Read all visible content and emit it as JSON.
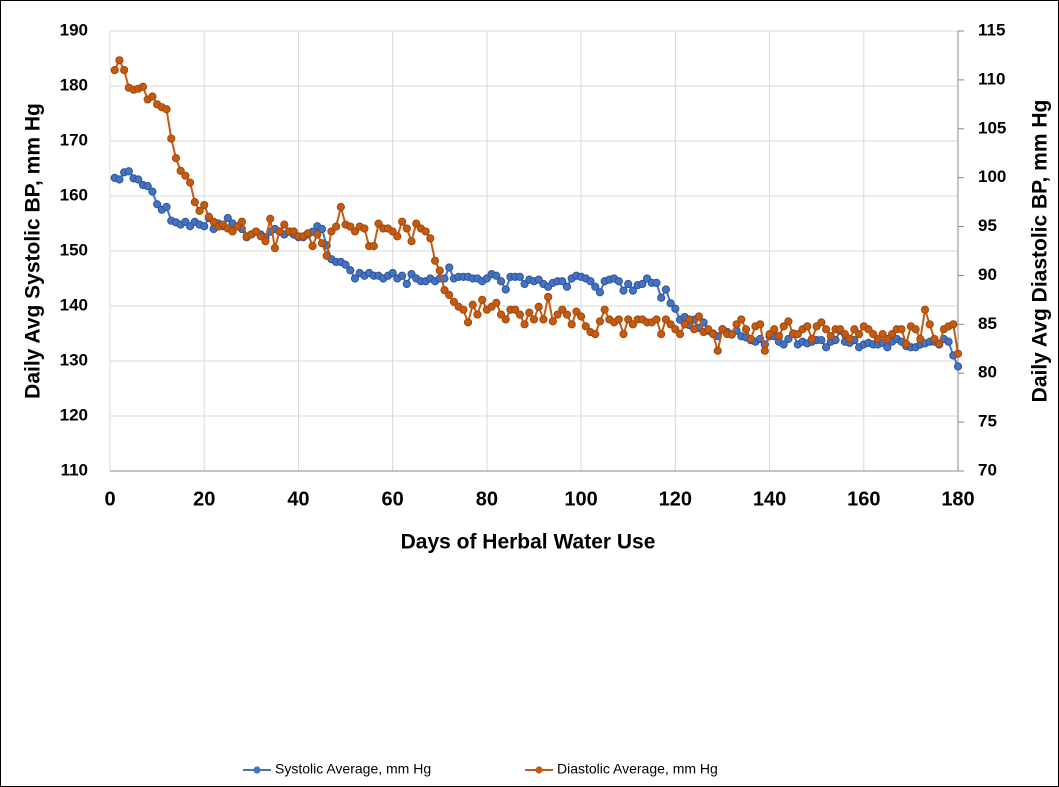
{
  "chart_data": {
    "type": "line",
    "xlabel": "Days of Herbal Water Use",
    "ylabel": "Daily Avg Systolic BP, mm Hg",
    "y2label": "Daily Avg Diastolic BP, mm Hg",
    "xlim": [
      0,
      180
    ],
    "xticks": [
      0,
      20,
      40,
      60,
      80,
      100,
      120,
      140,
      160,
      180
    ],
    "ylim": [
      110,
      190
    ],
    "yticks": [
      110,
      120,
      130,
      140,
      150,
      160,
      170,
      180,
      190
    ],
    "y2lim": [
      70,
      115
    ],
    "y2ticks": [
      70,
      75,
      80,
      85,
      90,
      95,
      100,
      105,
      110,
      115
    ],
    "grid": true,
    "legend": "bottom",
    "x": [
      1,
      2,
      3,
      4,
      5,
      6,
      7,
      8,
      9,
      10,
      11,
      12,
      13,
      14,
      15,
      16,
      17,
      18,
      19,
      20,
      21,
      22,
      23,
      24,
      25,
      26,
      27,
      28,
      29,
      30,
      31,
      32,
      33,
      34,
      35,
      36,
      37,
      38,
      39,
      40,
      41,
      42,
      43,
      44,
      45,
      46,
      47,
      48,
      49,
      50,
      51,
      52,
      53,
      54,
      55,
      56,
      57,
      58,
      59,
      60,
      61,
      62,
      63,
      64,
      65,
      66,
      67,
      68,
      69,
      70,
      71,
      72,
      73,
      74,
      75,
      76,
      77,
      78,
      79,
      80,
      81,
      82,
      83,
      84,
      85,
      86,
      87,
      88,
      89,
      90,
      91,
      92,
      93,
      94,
      95,
      96,
      97,
      98,
      99,
      100,
      101,
      102,
      103,
      104,
      105,
      106,
      107,
      108,
      109,
      110,
      111,
      112,
      113,
      114,
      115,
      116,
      117,
      118,
      119,
      120,
      121,
      122,
      123,
      124,
      125,
      126,
      127,
      128,
      129,
      130,
      131,
      132,
      133,
      134,
      135,
      136,
      137,
      138,
      139,
      140,
      141,
      142,
      143,
      144,
      145,
      146,
      147,
      148,
      149,
      150,
      151,
      152,
      153,
      154,
      155,
      156,
      157,
      158,
      159,
      160,
      161,
      162,
      163,
      164,
      165,
      166,
      167,
      168,
      169,
      170,
      171,
      172,
      173,
      174,
      175,
      176,
      177,
      178,
      179,
      180
    ],
    "series": [
      {
        "name": "Systolic Average, mm Hg",
        "color": "#4472c4",
        "axis": "y",
        "values": [
          163.3,
          163,
          164.3,
          164.5,
          163.2,
          163,
          162,
          161.8,
          160.8,
          158.5,
          157.5,
          158,
          155.5,
          155.2,
          154.8,
          155.3,
          154.5,
          155.3,
          154.8,
          154.5,
          156,
          154,
          155,
          154.5,
          156,
          155,
          154.5,
          154,
          152.5,
          153,
          153.5,
          153,
          152.5,
          153.5,
          154,
          153.5,
          153,
          153.5,
          153,
          152.5,
          152.5,
          153,
          153.5,
          154.5,
          154,
          151,
          148.5,
          148,
          148,
          147.5,
          146.5,
          145,
          146,
          145.5,
          146,
          145.5,
          145.5,
          145,
          145.5,
          146,
          145,
          145.5,
          144,
          145.8,
          145,
          144.5,
          144.5,
          145,
          144.5,
          145,
          145,
          147,
          145,
          145.3,
          145.3,
          145.3,
          145,
          145,
          144.5,
          145,
          145.8,
          145.5,
          144.5,
          143,
          145.3,
          145.3,
          145.3,
          144,
          144.8,
          144.5,
          144.8,
          144,
          143.5,
          144.2,
          144.5,
          144.5,
          143.5,
          145,
          145.5,
          145.3,
          145,
          144.5,
          143.5,
          142.5,
          144.5,
          144.8,
          145,
          144.5,
          142.8,
          144,
          142.8,
          143.8,
          144,
          145,
          144.2,
          144.2,
          141.5,
          143,
          140.5,
          139.5,
          137.5,
          138,
          136.5,
          137.5,
          136,
          137,
          135.5,
          135,
          134.5,
          135.8,
          135.3,
          134.8,
          135.5,
          134.5,
          134.3,
          133.8,
          133.5,
          134,
          133,
          134.5,
          134.5,
          133.5,
          133,
          134,
          135,
          133,
          133.5,
          133.2,
          133.5,
          133.8,
          133.8,
          132.5,
          133.5,
          133.8,
          135.5,
          133.5,
          133.3,
          133.8,
          132.5,
          133,
          133.3,
          133,
          133,
          133.3,
          132.5,
          133.5,
          134,
          133.5,
          132.7,
          132.5,
          132.5,
          133,
          133.2,
          133.5,
          133.5,
          133,
          134,
          133.5,
          131,
          129
        ]
      },
      {
        "name": "Diastolic Average, mm Hg",
        "color": "#c55a11",
        "axis": "y2",
        "values": [
          111,
          112,
          111,
          109.2,
          109,
          109.1,
          109.3,
          108,
          108.3,
          107.5,
          107.2,
          107,
          104,
          102,
          100.7,
          100.2,
          99.5,
          97.5,
          96.6,
          97.2,
          96,
          95.5,
          95,
          95.2,
          94.8,
          94.5,
          95,
          95.5,
          94,
          94.2,
          94.5,
          94,
          93.5,
          95.8,
          92.8,
          94.5,
          95.2,
          94.5,
          94.5,
          94,
          94,
          94.3,
          93,
          94.2,
          93.3,
          92,
          94.5,
          95,
          97,
          95.2,
          95,
          94.5,
          95,
          94.8,
          93,
          93,
          95.3,
          94.8,
          94.8,
          94.5,
          94,
          95.5,
          94.8,
          93.5,
          95.3,
          94.8,
          94.5,
          93.8,
          91.5,
          90.5,
          88.5,
          88,
          87.3,
          86.8,
          86.5,
          85.2,
          87,
          86,
          87.5,
          86.5,
          86.8,
          87.2,
          86,
          85.5,
          86.5,
          86.5,
          86,
          85,
          86.2,
          85.5,
          86.8,
          85.5,
          87.8,
          85.3,
          86,
          86.5,
          86,
          85,
          86.3,
          85.8,
          84.8,
          84.2,
          84,
          85.3,
          86.5,
          85.5,
          85.2,
          85.5,
          84,
          85.5,
          85,
          85.5,
          85.5,
          85.2,
          85.2,
          85.5,
          84,
          85.5,
          85,
          84.5,
          84,
          85,
          85.5,
          84.5,
          85.8,
          84.2,
          84.5,
          84,
          82.3,
          84.5,
          84,
          84,
          85,
          85.5,
          84.5,
          83.5,
          84.8,
          85,
          82.3,
          84,
          84.5,
          83.8,
          84.8,
          85.3,
          84,
          84,
          84.5,
          84.8,
          83.5,
          84.8,
          85.2,
          84.5,
          83.8,
          84.5,
          84.5,
          84,
          83.5,
          84.5,
          84,
          84.8,
          84.5,
          84,
          83.5,
          84,
          83.5,
          84,
          84.5,
          84.5,
          83,
          84.8,
          84.5,
          83.5,
          86.5,
          85,
          83.5,
          83,
          84.5,
          84.8,
          85,
          82
        ]
      }
    ]
  }
}
